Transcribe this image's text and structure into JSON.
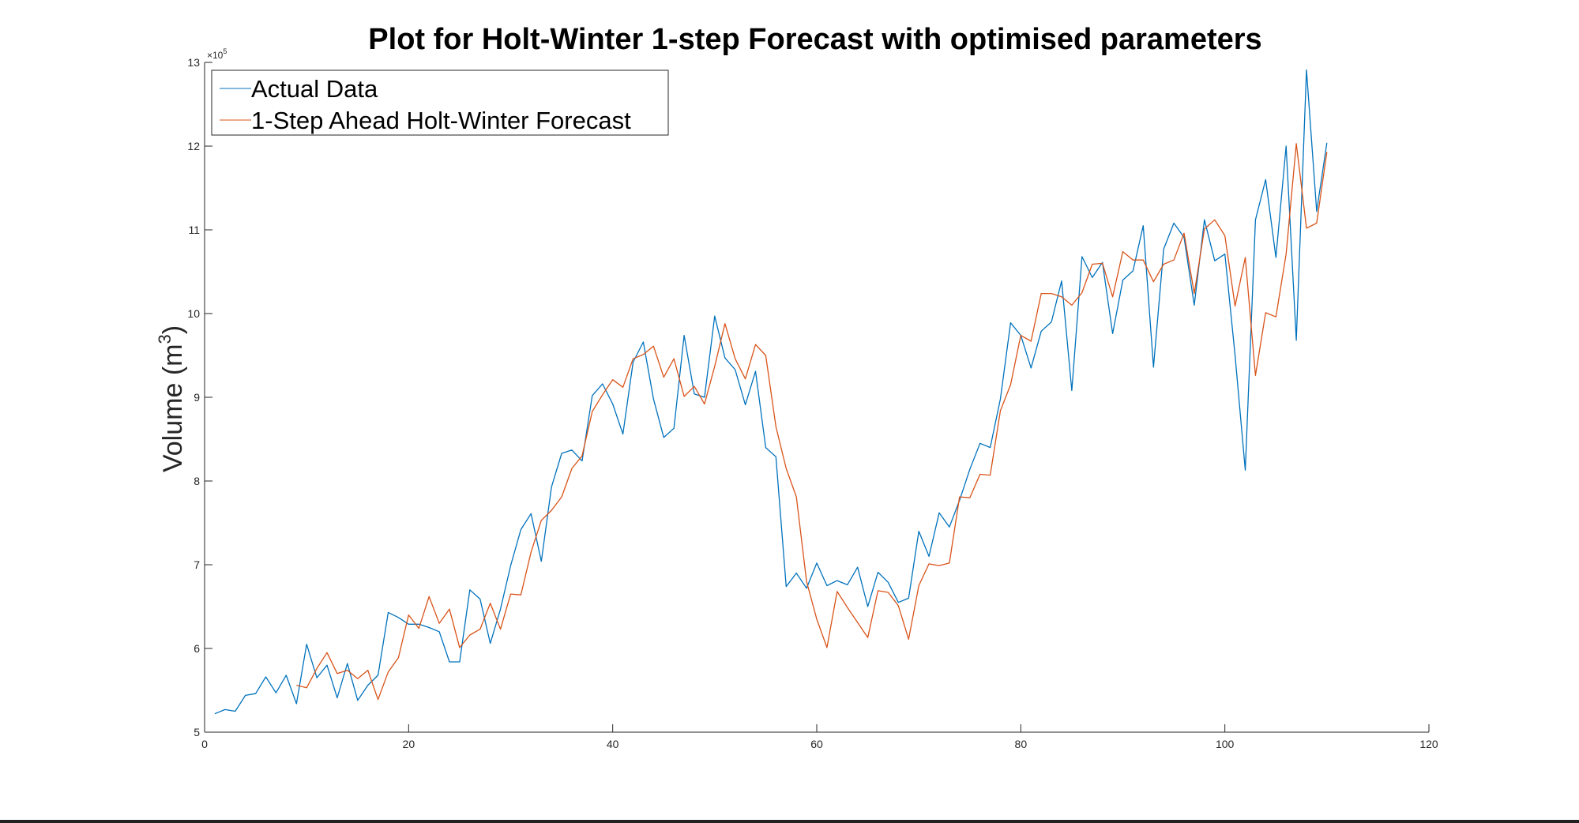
{
  "chart_data": {
    "type": "line",
    "title": "Plot for Holt-Winter 1-step Forecast with optimised parameters",
    "xlabel": "",
    "ylabel": "Volume (m",
    "ylabel_superscript": "3",
    "ylabel_suffix": ")",
    "y_exponent_base": "×10",
    "y_exponent_power": "5",
    "xlim": [
      0,
      120
    ],
    "ylim": [
      5,
      13
    ],
    "x_ticks": [
      0,
      20,
      40,
      60,
      80,
      100,
      120
    ],
    "y_ticks": [
      5,
      6,
      7,
      8,
      9,
      10,
      11,
      12,
      13
    ],
    "grid": false,
    "legend_position": "top-left",
    "series": [
      {
        "name": "Actual Data",
        "color": "#0072BD",
        "x": [
          1,
          2,
          3,
          4,
          5,
          6,
          7,
          8,
          9,
          10,
          11,
          12,
          13,
          14,
          15,
          16,
          17,
          18,
          19,
          20,
          21,
          22,
          23,
          24,
          25,
          26,
          27,
          28,
          29,
          30,
          31,
          32,
          33,
          34,
          35,
          36,
          37,
          38,
          39,
          40,
          41,
          42,
          43,
          44,
          45,
          46,
          47,
          48,
          49,
          50,
          51,
          52,
          53,
          54,
          55,
          56,
          57,
          58,
          59,
          60,
          61,
          62,
          63,
          64,
          65,
          66,
          67,
          68,
          69,
          70,
          71,
          72,
          73,
          74,
          75,
          76,
          77,
          78,
          79,
          80,
          81,
          82,
          83,
          84,
          85,
          86,
          87,
          88,
          89,
          90,
          91,
          92,
          93,
          94,
          95,
          96,
          97,
          98,
          99,
          100,
          101,
          102,
          103,
          104,
          105,
          106,
          107,
          108,
          109,
          110
        ],
        "values": [
          5.22,
          5.27,
          5.25,
          5.44,
          5.46,
          5.66,
          5.47,
          5.68,
          5.34,
          6.05,
          5.65,
          5.8,
          5.41,
          5.82,
          5.38,
          5.56,
          5.68,
          6.43,
          6.37,
          6.29,
          6.29,
          6.25,
          6.2,
          5.84,
          5.84,
          6.7,
          6.59,
          6.06,
          6.47,
          6.99,
          7.42,
          7.61,
          7.04,
          7.93,
          8.33,
          8.37,
          8.24,
          9.02,
          9.16,
          8.92,
          8.56,
          9.42,
          9.66,
          8.98,
          8.52,
          8.63,
          9.74,
          9.04,
          9.0,
          9.97,
          9.47,
          9.33,
          8.91,
          9.31,
          8.4,
          8.29,
          6.74,
          6.9,
          6.72,
          7.02,
          6.75,
          6.81,
          6.76,
          6.97,
          6.5,
          6.91,
          6.79,
          6.55,
          6.6,
          7.4,
          7.1,
          7.62,
          7.45,
          7.77,
          8.14,
          8.45,
          8.4,
          8.98,
          9.89,
          9.74,
          9.35,
          9.79,
          9.9,
          10.39,
          9.08,
          10.68,
          10.43,
          10.61,
          9.76,
          10.4,
          10.51,
          11.05,
          9.36,
          10.77,
          11.08,
          10.91,
          10.1,
          11.12,
          10.63,
          10.71,
          9.5,
          8.13,
          11.12,
          11.6,
          10.67,
          12.0,
          9.68,
          12.91,
          11.22,
          12.04
        ]
      },
      {
        "name": "1-Step Ahead Holt-Winter Forecast",
        "color": "#D95319",
        "x": [
          9,
          10,
          11,
          12,
          13,
          14,
          15,
          16,
          17,
          18,
          19,
          20,
          21,
          22,
          23,
          24,
          25,
          26,
          27,
          28,
          29,
          30,
          31,
          32,
          33,
          34,
          35,
          36,
          37,
          38,
          39,
          40,
          41,
          42,
          43,
          44,
          45,
          46,
          47,
          48,
          49,
          50,
          51,
          52,
          53,
          54,
          55,
          56,
          57,
          58,
          59,
          60,
          61,
          62,
          63,
          64,
          65,
          66,
          67,
          68,
          69,
          70,
          71,
          72,
          73,
          74,
          75,
          76,
          77,
          78,
          79,
          80,
          81,
          82,
          83,
          84,
          85,
          86,
          87,
          88,
          89,
          90,
          91,
          92,
          93,
          94,
          95,
          96,
          97,
          98,
          99,
          100,
          101,
          102,
          103,
          104,
          105,
          106,
          107,
          108,
          109,
          110
        ],
        "values": [
          5.56,
          5.53,
          5.76,
          5.95,
          5.7,
          5.74,
          5.64,
          5.74,
          5.39,
          5.72,
          5.89,
          6.4,
          6.24,
          6.62,
          6.3,
          6.47,
          6.01,
          6.16,
          6.23,
          6.54,
          6.23,
          6.65,
          6.64,
          7.15,
          7.53,
          7.65,
          7.81,
          8.15,
          8.3,
          8.83,
          9.03,
          9.21,
          9.12,
          9.46,
          9.51,
          9.61,
          9.24,
          9.46,
          9.01,
          9.13,
          8.92,
          9.37,
          9.88,
          9.46,
          9.22,
          9.63,
          9.5,
          8.65,
          8.15,
          7.81,
          6.8,
          6.35,
          6.01,
          6.68,
          6.49,
          6.31,
          6.13,
          6.69,
          6.67,
          6.51,
          6.11,
          6.75,
          7.01,
          6.99,
          7.02,
          7.81,
          7.8,
          8.08,
          8.07,
          8.84,
          9.15,
          9.74,
          9.67,
          10.24,
          10.24,
          10.2,
          10.1,
          10.25,
          10.59,
          10.6,
          10.2,
          10.74,
          10.64,
          10.64,
          10.38,
          10.59,
          10.64,
          10.96,
          10.24,
          11.01,
          11.12,
          10.93,
          10.09,
          10.67,
          9.26,
          10.01,
          9.96,
          10.71,
          12.03,
          11.02,
          11.08,
          11.93
        ]
      }
    ]
  }
}
